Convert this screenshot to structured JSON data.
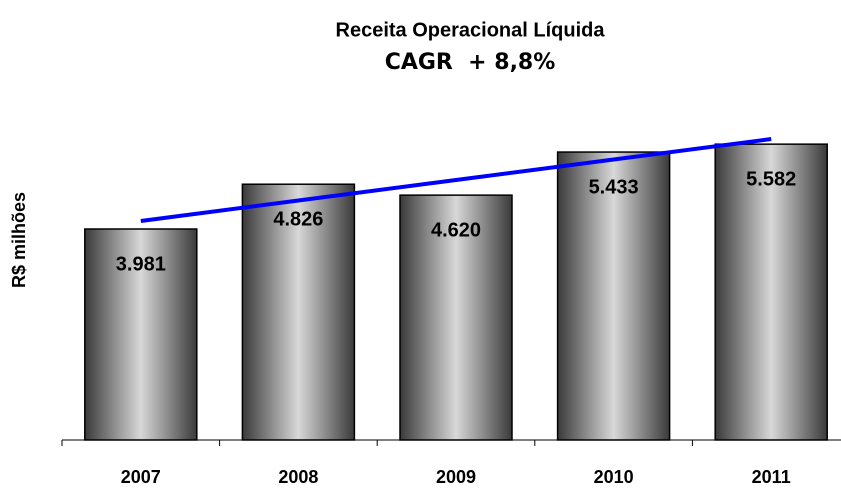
{
  "chart_data": {
    "type": "bar",
    "title": "Receita Operacional Líquida",
    "subtitle": "CAGR  + 8,8%",
    "y_label": "R$ milhões",
    "categories": [
      "2007",
      "2008",
      "2009",
      "2010",
      "2011"
    ],
    "values": [
      3981,
      4826,
      4620,
      5433,
      5582
    ],
    "value_labels": [
      "3.981",
      "4.826",
      "4.620",
      "5.433",
      "5.582"
    ],
    "color": "#b0b0b0",
    "trend": {
      "values": [
        4132,
        4519,
        4906,
        5292,
        5679
      ],
      "color": "#0000ff"
    },
    "ylim": [
      0,
      6000
    ]
  }
}
